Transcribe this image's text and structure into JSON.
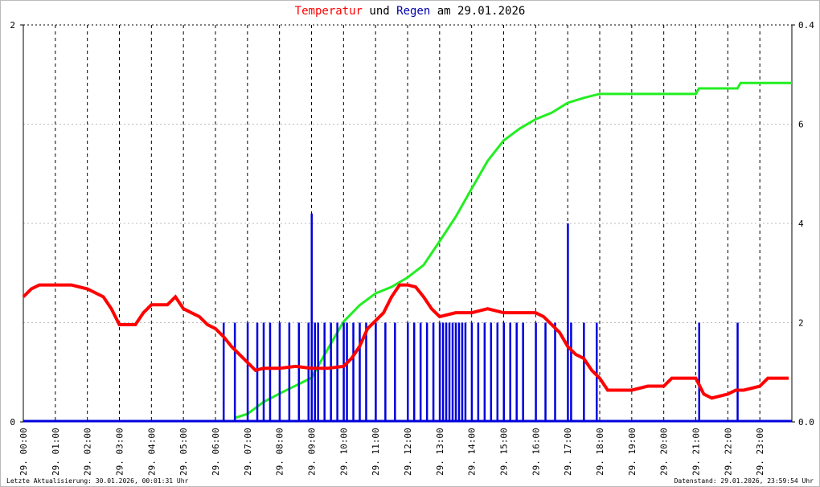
{
  "chart_data": {
    "type": "line",
    "title_connector": "und",
    "title_date": "am 29.01.2026",
    "footer_left": "Letzte Aktualisierung: 30.01.2026, 00:01:31 Uhr",
    "footer_right": "Datenstand: 29.01.2026, 23:59:54 Uhr",
    "xlim": [
      0,
      24
    ],
    "xticks": [
      {
        "value": 0,
        "label": "29. 00:00"
      },
      {
        "value": 1,
        "label": "29. 01:00"
      },
      {
        "value": 2,
        "label": "29. 02:00"
      },
      {
        "value": 3,
        "label": "29. 03:00"
      },
      {
        "value": 4,
        "label": "29. 04:00"
      },
      {
        "value": 5,
        "label": "29. 05:00"
      },
      {
        "value": 6,
        "label": "29. 06:00"
      },
      {
        "value": 7,
        "label": "29. 07:00"
      },
      {
        "value": 8,
        "label": "29. 08:00"
      },
      {
        "value": 9,
        "label": "29. 09:00"
      },
      {
        "value": 10,
        "label": "29. 10:00"
      },
      {
        "value": 11,
        "label": "29. 11:00"
      },
      {
        "value": 12,
        "label": "29. 12:00"
      },
      {
        "value": 13,
        "label": "29. 13:00"
      },
      {
        "value": 14,
        "label": "29. 14:00"
      },
      {
        "value": 15,
        "label": "29. 15:00"
      },
      {
        "value": 16,
        "label": "29. 16:00"
      },
      {
        "value": 17,
        "label": "29. 17:00"
      },
      {
        "value": 18,
        "label": "29. 18:00"
      },
      {
        "value": 19,
        "label": "29. 19:00"
      },
      {
        "value": 20,
        "label": "29. 20:00"
      },
      {
        "value": 21,
        "label": "29. 21:00"
      },
      {
        "value": 22,
        "label": "29. 22:00"
      },
      {
        "value": 23,
        "label": "29. 23:00"
      }
    ],
    "ylim": [
      0,
      2
    ],
    "yticks": [
      0,
      2
    ],
    "y2lim": [
      0,
      8
    ],
    "y2ticks": [
      2,
      4,
      6
    ],
    "y3lim": [
      0,
      0.4
    ],
    "y3ticks": [
      {
        "value": 0,
        "label": "0.0"
      },
      {
        "value": 0.4,
        "label": "0.4"
      }
    ],
    "grid": true,
    "series": [
      {
        "name": "Temperatur",
        "color": "#ff0000",
        "axis": "y",
        "x": [
          0,
          0.25,
          0.5,
          1,
          1.5,
          2,
          2.5,
          2.75,
          3,
          3.5,
          3.75,
          4,
          4.5,
          4.75,
          5,
          5.25,
          5.5,
          5.75,
          6,
          6.25,
          6.5,
          6.75,
          7,
          7.25,
          7.5,
          8,
          8.5,
          9,
          9.5,
          10,
          10.25,
          10.5,
          10.75,
          11,
          11.25,
          11.5,
          11.75,
          12,
          12.25,
          12.5,
          12.75,
          13,
          13.5,
          14,
          14.5,
          15,
          15.5,
          16,
          16.25,
          16.5,
          16.75,
          17,
          17.25,
          17.5,
          17.75,
          18,
          18.25,
          18.5,
          19,
          19.5,
          20,
          20.25,
          20.5,
          21,
          21.25,
          21.5,
          22,
          22.25,
          22.5,
          23,
          23.25,
          23.5,
          23.9
        ],
        "values": [
          0.63,
          0.67,
          0.69,
          0.69,
          0.69,
          0.67,
          0.63,
          0.57,
          0.49,
          0.49,
          0.55,
          0.59,
          0.59,
          0.63,
          0.57,
          0.55,
          0.53,
          0.49,
          0.47,
          0.43,
          0.38,
          0.34,
          0.3,
          0.26,
          0.27,
          0.27,
          0.28,
          0.27,
          0.27,
          0.28,
          0.32,
          0.38,
          0.47,
          0.51,
          0.55,
          0.63,
          0.69,
          0.69,
          0.68,
          0.63,
          0.57,
          0.53,
          0.55,
          0.55,
          0.57,
          0.55,
          0.55,
          0.55,
          0.53,
          0.49,
          0.45,
          0.38,
          0.34,
          0.32,
          0.26,
          0.22,
          0.16,
          0.16,
          0.16,
          0.18,
          0.18,
          0.22,
          0.22,
          0.22,
          0.14,
          0.12,
          0.14,
          0.16,
          0.16,
          0.18,
          0.22,
          0.22,
          0.22
        ]
      },
      {
        "name": "Regen",
        "color": "#0000dd",
        "axis": "y3",
        "type": "bar",
        "x": [
          6.25,
          6.6,
          7.0,
          7.3,
          7.5,
          7.7,
          8.0,
          8.3,
          8.6,
          8.9,
          9.0,
          9.1,
          9.2,
          9.4,
          9.6,
          9.8,
          10.0,
          10.1,
          10.3,
          10.5,
          10.7,
          11.0,
          11.3,
          11.6,
          12.0,
          12.2,
          12.4,
          12.6,
          12.8,
          13.0,
          13.1,
          13.2,
          13.3,
          13.4,
          13.5,
          13.6,
          13.7,
          13.8,
          14.0,
          14.2,
          14.4,
          14.6,
          14.8,
          15.0,
          15.2,
          15.4,
          15.6,
          16.0,
          16.3,
          16.6,
          17.0,
          17.1,
          17.5,
          17.9,
          21.1,
          22.3
        ],
        "values": [
          0.1,
          0.1,
          0.1,
          0.1,
          0.1,
          0.1,
          0.1,
          0.1,
          0.1,
          0.1,
          0.21,
          0.1,
          0.1,
          0.1,
          0.1,
          0.1,
          0.1,
          0.1,
          0.1,
          0.1,
          0.1,
          0.1,
          0.1,
          0.1,
          0.1,
          0.1,
          0.1,
          0.1,
          0.1,
          0.1,
          0.1,
          0.1,
          0.1,
          0.1,
          0.1,
          0.1,
          0.1,
          0.1,
          0.1,
          0.1,
          0.1,
          0.1,
          0.1,
          0.1,
          0.1,
          0.1,
          0.1,
          0.1,
          0.1,
          0.1,
          0.2,
          0.1,
          0.1,
          0.1,
          0.1,
          0.1
        ]
      },
      {
        "color": "#22ee22",
        "axis": "y2",
        "x": [
          6.6,
          7.0,
          7.5,
          8,
          8.5,
          9,
          9.5,
          10,
          10.5,
          11,
          11.5,
          12,
          12.5,
          13,
          13.5,
          14,
          14.5,
          15,
          15.5,
          16,
          16.5,
          17,
          17.5,
          18,
          21,
          21.1,
          22.3,
          22.4,
          24
        ],
        "values": [
          0.08,
          0.16,
          0.4,
          0.57,
          0.73,
          0.89,
          1.46,
          2.02,
          2.35,
          2.59,
          2.72,
          2.91,
          3.16,
          3.64,
          4.13,
          4.7,
          5.26,
          5.67,
          5.91,
          6.1,
          6.23,
          6.43,
          6.53,
          6.61,
          6.61,
          6.72,
          6.72,
          6.83,
          6.83
        ]
      }
    ]
  }
}
